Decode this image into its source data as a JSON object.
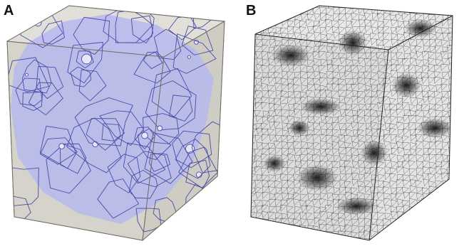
{
  "figure": {
    "panel_a": {
      "label": "A"
    },
    "panel_b": {
      "label": "B"
    }
  },
  "colors": {
    "background": "#ffffff",
    "cube_grey": "#d9d6cf",
    "voronoi_fill": "#b7b9ee",
    "voronoi_edge": "#3d3f9a",
    "mesh_line": "#2b2b2b",
    "mesh_dense": "#1a1a1a"
  }
}
